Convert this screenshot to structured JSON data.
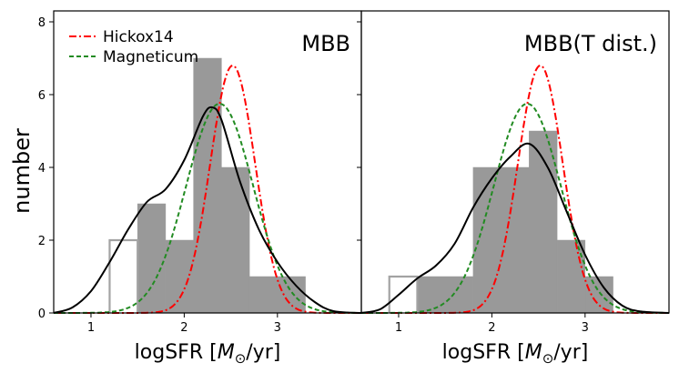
{
  "figure": {
    "ylabel": "number",
    "colors": {
      "hist_fill": "#999999",
      "hist_edge": "#a3a3a3",
      "kde": "#000000",
      "hickox": "#ff0000",
      "magneticum": "#228b22"
    }
  },
  "chart_data": [
    {
      "type": "histogram",
      "title": "MBB",
      "xlabel": "logSFR [M_⊙/yr]",
      "ylabel": "number",
      "xlim": [
        0.6,
        3.9
      ],
      "ylim": [
        0,
        8.3
      ],
      "xticks": [
        1,
        2,
        3
      ],
      "yticks": [
        0,
        2,
        4,
        6,
        8
      ],
      "legend": {
        "position": "top-left",
        "entries": [
          {
            "label": "Hickox14",
            "style": "dash-dot",
            "color": "#ff0000"
          },
          {
            "label": "Magneticum",
            "style": "dashed",
            "color": "#228b22"
          }
        ]
      },
      "outline_bins": [
        {
          "x0": 1.2,
          "x1": 1.5,
          "count": 2
        }
      ],
      "filled_bins": [
        {
          "x0": 1.5,
          "x1": 1.8,
          "count": 3
        },
        {
          "x0": 1.8,
          "x1": 2.1,
          "count": 2
        },
        {
          "x0": 2.1,
          "x1": 2.4,
          "count": 7
        },
        {
          "x0": 2.4,
          "x1": 2.7,
          "count": 4
        },
        {
          "x0": 2.7,
          "x1": 3.3,
          "count": 1
        }
      ],
      "kde": {
        "name": "KDE",
        "x": [
          0.6,
          0.8,
          1.0,
          1.2,
          1.4,
          1.6,
          1.8,
          2.0,
          2.2,
          2.3,
          2.4,
          2.6,
          2.8,
          3.0,
          3.2,
          3.4,
          3.6,
          3.9
        ],
        "y": [
          0.0,
          0.15,
          0.6,
          1.4,
          2.3,
          3.05,
          3.4,
          4.2,
          5.4,
          5.65,
          5.3,
          3.6,
          2.3,
          1.4,
          0.75,
          0.3,
          0.05,
          0.0
        ]
      },
      "series": [
        {
          "name": "Hickox14",
          "mu": 2.52,
          "sigma": 0.24,
          "peak": 6.8
        },
        {
          "name": "Magneticum",
          "mu": 2.38,
          "sigma": 0.36,
          "peak": 5.75
        }
      ]
    },
    {
      "type": "histogram",
      "title": "MBB(T dist.)",
      "xlabel": "logSFR [M_⊙/yr]",
      "ylabel": "",
      "xlim": [
        0.6,
        3.9
      ],
      "ylim": [
        0,
        8.3
      ],
      "xticks": [
        1,
        2,
        3
      ],
      "yticks": [
        0,
        2,
        4,
        6,
        8
      ],
      "legend": null,
      "outline_bins": [
        {
          "x0": 0.9,
          "x1": 1.2,
          "count": 1
        }
      ],
      "filled_bins": [
        {
          "x0": 1.2,
          "x1": 1.8,
          "count": 1
        },
        {
          "x0": 1.8,
          "x1": 2.4,
          "count": 4
        },
        {
          "x0": 2.4,
          "x1": 2.7,
          "count": 5
        },
        {
          "x0": 2.7,
          "x1": 3.0,
          "count": 2
        },
        {
          "x0": 3.0,
          "x1": 3.3,
          "count": 1
        }
      ],
      "kde": {
        "name": "KDE",
        "x": [
          0.6,
          0.8,
          1.0,
          1.2,
          1.4,
          1.6,
          1.8,
          2.0,
          2.2,
          2.4,
          2.6,
          2.8,
          3.0,
          3.2,
          3.4,
          3.6,
          3.9
        ],
        "y": [
          0.0,
          0.1,
          0.5,
          0.95,
          1.3,
          1.9,
          2.9,
          3.7,
          4.3,
          4.65,
          4.0,
          2.8,
          1.6,
          0.7,
          0.2,
          0.04,
          0.0
        ]
      },
      "series": [
        {
          "name": "Hickox14",
          "mu": 2.52,
          "sigma": 0.24,
          "peak": 6.8
        },
        {
          "name": "Magneticum",
          "mu": 2.38,
          "sigma": 0.36,
          "peak": 5.75
        }
      ]
    }
  ]
}
